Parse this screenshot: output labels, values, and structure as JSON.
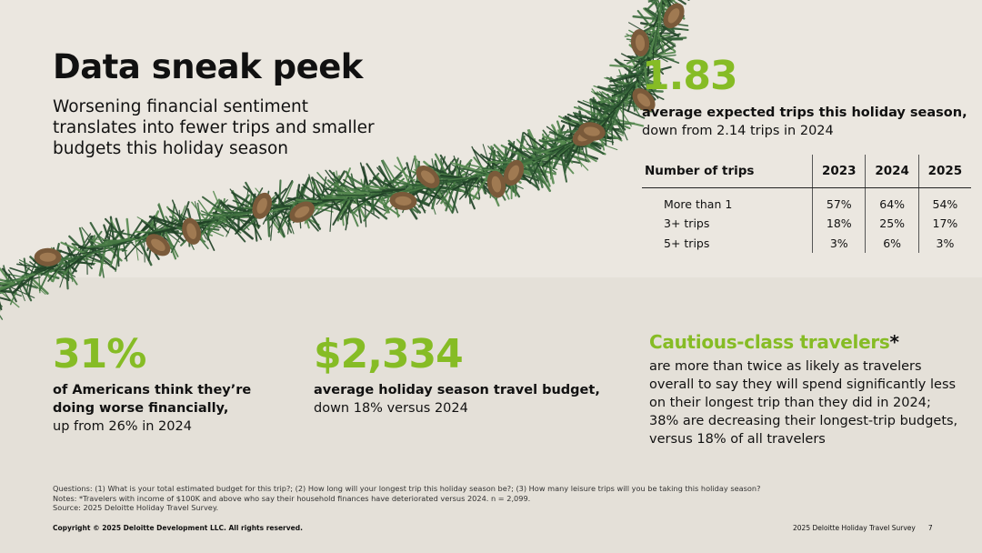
{
  "title": "Data sneak peek",
  "subtitle": "Worsening financial sentiment translates into fewer trips and smaller budgets this holiday season",
  "trips_stat": {
    "value": "1.83",
    "line1": "average expected trips this holiday season,",
    "line2": "down from 2.14 trips in 2024"
  },
  "trips_table": {
    "headers": [
      "Number of trips",
      "2023",
      "2024",
      "2025"
    ],
    "rows": [
      [
        "More than 1",
        "57%",
        "64%",
        "54%"
      ],
      [
        "3+ trips",
        "18%",
        "25%",
        "17%"
      ],
      [
        "5+ trips",
        "3%",
        "6%",
        "3%"
      ]
    ]
  },
  "americans_stat": {
    "value": "31%",
    "line1": "of Americans think they’re",
    "line2": "doing worse financially,",
    "line3": "up from 26% in 2024"
  },
  "budget_stat": {
    "value": "$2,334",
    "line1": "average holiday season travel budget,",
    "line2": "down 18% versus 2024"
  },
  "cautious": {
    "title": "Cautious-class travelers",
    "asterisk": "*",
    "body": "are more than twice as likely as travelers overall to say they will spend significantly less on their longest trip than they did in 2024; 38% are decreasing their longest-trip budgets, versus 18% of all travelers"
  },
  "notes": {
    "questions": "Questions: (1) What is your total estimated budget for this trip?; (2) How long will your longest trip this holiday season be?; (3) How many leisure trips will you be taking this holiday season?",
    "notes_line": "Notes: *Travelers with income of $100K and above who say their household finances have deteriorated versus 2024. n = 2,099.",
    "source": "Source: 2025 Deloitte Holiday Travel Survey."
  },
  "footer": {
    "copyright": "Copyright © 2025 Deloitte Development LLC. All rights reserved.",
    "survey": "2025 Deloitte Holiday Travel Survey",
    "page": "7"
  },
  "colors": {
    "accent_green": "#86bc25",
    "garland_green": "#2f5a34",
    "pinecone": "#7a5a3a",
    "background": "#ebe7e0"
  }
}
